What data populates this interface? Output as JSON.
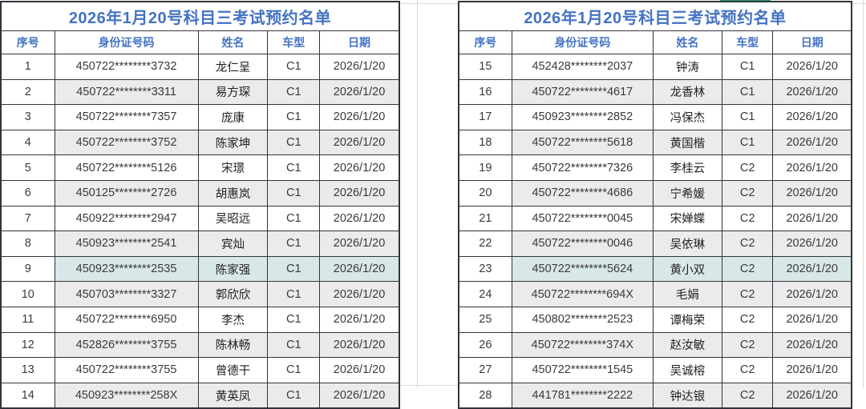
{
  "sheet": {
    "accent_blue": "#4472c4",
    "stripe_color": "#ebebeb",
    "highlight_color": "#d8e7e8",
    "border_color": "#33333d",
    "green_bar_color": "#21a366"
  },
  "columns": [
    "序号",
    "身份证号码",
    "姓名",
    "车型",
    "日期"
  ],
  "left_table": {
    "title": "2026年1月20号科目三考试预约名单",
    "rows": [
      {
        "no": "1",
        "id": "450722********3732",
        "name": "龙仁呈",
        "car": "C1",
        "date": "2026/1/20",
        "highlight": false
      },
      {
        "no": "2",
        "id": "450722********3311",
        "name": "易方琛",
        "car": "C1",
        "date": "2026/1/20",
        "highlight": false
      },
      {
        "no": "3",
        "id": "450722********7357",
        "name": "庞康",
        "car": "C1",
        "date": "2026/1/20",
        "highlight": false
      },
      {
        "no": "4",
        "id": "450722********3752",
        "name": "陈家坤",
        "car": "C1",
        "date": "2026/1/20",
        "highlight": false
      },
      {
        "no": "5",
        "id": "450722********5126",
        "name": "宋璟",
        "car": "C1",
        "date": "2026/1/20",
        "highlight": false
      },
      {
        "no": "6",
        "id": "450125********2726",
        "name": "胡惠岚",
        "car": "C1",
        "date": "2026/1/20",
        "highlight": false
      },
      {
        "no": "7",
        "id": "450922********2947",
        "name": "吴昭远",
        "car": "C1",
        "date": "2026/1/20",
        "highlight": false
      },
      {
        "no": "8",
        "id": "450923********2541",
        "name": "宾灿",
        "car": "C1",
        "date": "2026/1/20",
        "highlight": false
      },
      {
        "no": "9",
        "id": "450923********2535",
        "name": "陈家强",
        "car": "C1",
        "date": "2026/1/20",
        "highlight": true
      },
      {
        "no": "10",
        "id": "450703********3327",
        "name": "郭欣欣",
        "car": "C1",
        "date": "2026/1/20",
        "highlight": false
      },
      {
        "no": "11",
        "id": "450722********6950",
        "name": "李杰",
        "car": "C1",
        "date": "2026/1/20",
        "highlight": false
      },
      {
        "no": "12",
        "id": "452826********3755",
        "name": "陈林畅",
        "car": "C1",
        "date": "2026/1/20",
        "highlight": false
      },
      {
        "no": "13",
        "id": "450722********3755",
        "name": "曾德干",
        "car": "C1",
        "date": "2026/1/20",
        "highlight": false
      },
      {
        "no": "14",
        "id": "450923********258X",
        "name": "黄英凤",
        "car": "C1",
        "date": "2026/1/20",
        "highlight": false
      }
    ]
  },
  "right_table": {
    "title": "2026年1月20号科目三考试预约名单",
    "rows": [
      {
        "no": "15",
        "id": "452428********2037",
        "name": "钟涛",
        "car": "C1",
        "date": "2026/1/20",
        "highlight": false
      },
      {
        "no": "16",
        "id": "450722********4617",
        "name": "龙香林",
        "car": "C1",
        "date": "2026/1/20",
        "highlight": false
      },
      {
        "no": "17",
        "id": "450923********2852",
        "name": "冯保杰",
        "car": "C1",
        "date": "2026/1/20",
        "highlight": false
      },
      {
        "no": "18",
        "id": "450722********5618",
        "name": "黄国楷",
        "car": "C1",
        "date": "2026/1/20",
        "highlight": false
      },
      {
        "no": "19",
        "id": "450722********7326",
        "name": "李桂云",
        "car": "C2",
        "date": "2026/1/20",
        "highlight": false
      },
      {
        "no": "20",
        "id": "450722********4686",
        "name": "宁希媛",
        "car": "C2",
        "date": "2026/1/20",
        "highlight": false
      },
      {
        "no": "21",
        "id": "450722********0045",
        "name": "宋婵蝶",
        "car": "C2",
        "date": "2026/1/20",
        "highlight": false
      },
      {
        "no": "22",
        "id": "450722********0046",
        "name": "吴依琳",
        "car": "C2",
        "date": "2026/1/20",
        "highlight": false
      },
      {
        "no": "23",
        "id": "450722********5624",
        "name": "黄小双",
        "car": "C2",
        "date": "2026/1/20",
        "highlight": true
      },
      {
        "no": "24",
        "id": "450722********694X",
        "name": "毛娟",
        "car": "C2",
        "date": "2026/1/20",
        "highlight": false
      },
      {
        "no": "25",
        "id": "450802********2523",
        "name": "谭梅荣",
        "car": "C2",
        "date": "2026/1/20",
        "highlight": false
      },
      {
        "no": "26",
        "id": "450722********374X",
        "name": "赵汝敏",
        "car": "C2",
        "date": "2026/1/20",
        "highlight": false
      },
      {
        "no": "27",
        "id": "450722********1545",
        "name": "吴诚榕",
        "car": "C2",
        "date": "2026/1/20",
        "highlight": false
      },
      {
        "no": "28",
        "id": "441781********2222",
        "name": "钟达银",
        "car": "C2",
        "date": "2026/1/20",
        "highlight": false
      }
    ]
  }
}
